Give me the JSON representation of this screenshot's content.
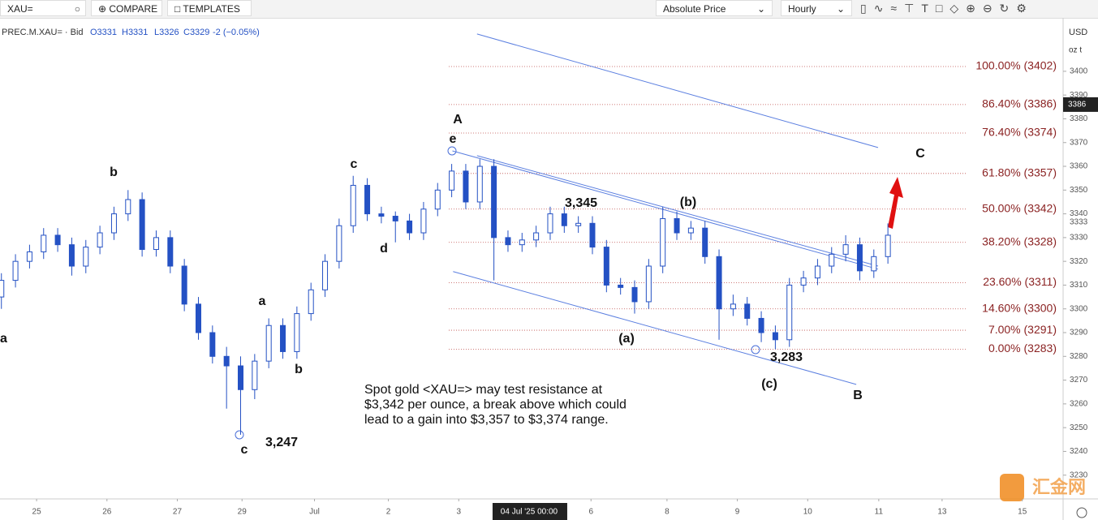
{
  "toolbar": {
    "symbol": "XAU=",
    "compare": "COMPARE",
    "templates": "TEMPLATES",
    "price_mode": "Absolute Price",
    "interval": "Hourly"
  },
  "chart_data": {
    "type": "candlestick",
    "legend": {
      "symbol": "PREC.M.XAU= · Bid",
      "open": "O3331",
      "high": "H3331",
      "low": "L3326",
      "close": "C3329",
      "change": "-2 (−0.05%)"
    },
    "currency": "USD",
    "unit": "oz t",
    "x": [
      -0.5,
      -0.3,
      -0.1,
      0.1,
      0.3,
      0.5,
      0.7,
      0.9,
      1.1,
      1.3,
      1.5,
      1.7,
      1.9,
      2.1,
      2.3,
      2.5,
      2.7,
      2.9,
      3.1,
      3.3,
      3.5,
      3.7,
      3.9,
      4.1,
      4.3,
      4.5,
      4.7,
      4.9,
      5.1,
      5.3,
      5.5,
      5.7,
      5.9,
      6.1,
      6.3,
      6.5,
      6.7,
      6.9,
      7.1,
      7.3,
      7.5,
      7.7,
      7.9,
      8.1,
      8.3,
      8.5,
      8.7,
      8.9,
      9.1,
      9.3,
      9.5,
      9.7,
      9.9,
      10.1,
      10.3,
      10.5,
      10.7,
      10.9,
      11.1,
      11.3,
      11.5,
      11.7,
      11.9,
      12.1
    ],
    "candles": [
      [
        3305,
        3315,
        3300,
        3312
      ],
      [
        3312,
        3323,
        3309,
        3320
      ],
      [
        3320,
        3327,
        3317,
        3324
      ],
      [
        3324,
        3334,
        3321,
        3331
      ],
      [
        3331,
        3334,
        3324,
        3327
      ],
      [
        3327,
        3330,
        3314,
        3318
      ],
      [
        3318,
        3329,
        3315,
        3326
      ],
      [
        3326,
        3335,
        3323,
        3332
      ],
      [
        3332,
        3343,
        3329,
        3340
      ],
      [
        3340,
        3350,
        3337,
        3346
      ],
      [
        3346,
        3349,
        3322,
        3325
      ],
      [
        3325,
        3333,
        3322,
        3330
      ],
      [
        3330,
        3333,
        3315,
        3318
      ],
      [
        3318,
        3321,
        3299,
        3302
      ],
      [
        3302,
        3305,
        3287,
        3290
      ],
      [
        3290,
        3293,
        3277,
        3280
      ],
      [
        3280,
        3284,
        3258,
        3276
      ],
      [
        3276,
        3280,
        3247,
        3266
      ],
      [
        3266,
        3281,
        3262,
        3278
      ],
      [
        3278,
        3296,
        3275,
        3293
      ],
      [
        3293,
        3296,
        3279,
        3282
      ],
      [
        3282,
        3301,
        3279,
        3298
      ],
      [
        3298,
        3311,
        3295,
        3308
      ],
      [
        3308,
        3323,
        3305,
        3320
      ],
      [
        3320,
        3338,
        3317,
        3335
      ],
      [
        3335,
        3356,
        3332,
        3352
      ],
      [
        3352,
        3355,
        3337,
        3340
      ],
      [
        3340,
        3343,
        3336,
        3339
      ],
      [
        3339,
        3341,
        3328,
        3337
      ],
      [
        3337,
        3340,
        3329,
        3332
      ],
      [
        3332,
        3345,
        3329,
        3342
      ],
      [
        3342,
        3353,
        3339,
        3350
      ],
      [
        3350,
        3361,
        3347,
        3358
      ],
      [
        3358,
        3361,
        3342,
        3345
      ],
      [
        3345,
        3363,
        3342,
        3360
      ],
      [
        3360,
        3363,
        3312,
        3330
      ],
      [
        3330,
        3333,
        3324,
        3327
      ],
      [
        3327,
        3332,
        3324,
        3329
      ],
      [
        3329,
        3335,
        3326,
        3332
      ],
      [
        3332,
        3343,
        3329,
        3340
      ],
      [
        3340,
        3343,
        3332,
        3335
      ],
      [
        3335,
        3339,
        3332,
        3336
      ],
      [
        3336,
        3339,
        3323,
        3326
      ],
      [
        3326,
        3329,
        3307,
        3310
      ],
      [
        3310,
        3313,
        3306,
        3309
      ],
      [
        3309,
        3312,
        3298,
        3303
      ],
      [
        3303,
        3321,
        3300,
        3318
      ],
      [
        3318,
        3343,
        3315,
        3338
      ],
      [
        3338,
        3341,
        3329,
        3332
      ],
      [
        3332,
        3337,
        3329,
        3334
      ],
      [
        3334,
        3337,
        3319,
        3322
      ],
      [
        3322,
        3325,
        3287,
        3300
      ],
      [
        3300,
        3306,
        3297,
        3302
      ],
      [
        3302,
        3305,
        3293,
        3296
      ],
      [
        3296,
        3299,
        3286,
        3290
      ],
      [
        3290,
        3293,
        3283,
        3287
      ],
      [
        3287,
        3313,
        3284,
        3310
      ],
      [
        3310,
        3316,
        3307,
        3313
      ],
      [
        3313,
        3321,
        3310,
        3318
      ],
      [
        3318,
        3326,
        3315,
        3323
      ],
      [
        3323,
        3331,
        3320,
        3327
      ],
      [
        3327,
        3330,
        3312,
        3316
      ],
      [
        3316,
        3325,
        3313,
        3322
      ],
      [
        3322,
        3336,
        3319,
        3331
      ]
    ],
    "up_color": "#ffffff",
    "line_color": "#2451c4",
    "xlim": [
      -0.52,
      14.59
    ],
    "xticks": [
      {
        "value": 0,
        "label": "25"
      },
      {
        "value": 1,
        "label": "26"
      },
      {
        "value": 2,
        "label": "27"
      },
      {
        "value": 2.92,
        "label": "29"
      },
      {
        "value": 3.95,
        "label": "Jul"
      },
      {
        "value": 5,
        "label": "2"
      },
      {
        "value": 6,
        "label": "3"
      },
      {
        "value": 7.88,
        "label": "6"
      },
      {
        "value": 8.96,
        "label": "8"
      },
      {
        "value": 9.96,
        "label": "9"
      },
      {
        "value": 10.96,
        "label": "10"
      },
      {
        "value": 11.97,
        "label": "11"
      },
      {
        "value": 12.87,
        "label": "13"
      },
      {
        "value": 14.01,
        "label": "15"
      }
    ],
    "ylim": [
      3220,
      3422.5
    ],
    "yticks": [
      3230,
      3240,
      3250,
      3260,
      3270,
      3280,
      3290,
      3300,
      3310,
      3320,
      3330,
      3340,
      3350,
      3360,
      3370,
      3380,
      3390,
      3400
    ],
    "last_price": 3333,
    "crosshair": {
      "x": 7,
      "x_label": "04 Jul '25  00:00",
      "price": 3386
    },
    "fib_color": "#c0504d",
    "fib_levels": [
      {
        "value": 3402,
        "label": "100.00% (3402)"
      },
      {
        "value": 3386,
        "label": "86.40% (3386)"
      },
      {
        "value": 3374,
        "label": "76.40% (3374)"
      },
      {
        "value": 3357,
        "label": "61.80% (3357)"
      },
      {
        "value": 3342,
        "label": "50.00% (3342)"
      },
      {
        "value": 3328,
        "label": "38.20% (3328)"
      },
      {
        "value": 3311,
        "label": "23.60% (3311)"
      },
      {
        "value": 3300,
        "label": "14.60% (3300)"
      },
      {
        "value": 3291,
        "label": "7.00% (3291)"
      },
      {
        "value": 3283,
        "label": "0.00% (3283)"
      }
    ],
    "trendline_color": "#5b7fe0",
    "trendlines": [
      {
        "x": [
          6.26,
          11.96
        ],
        "y": [
          3415.7,
          3367.9
        ]
      },
      {
        "x": [
          5.91,
          11.96
        ],
        "y": [
          3366.5,
          3316.7
        ]
      },
      {
        "x": [
          6.26,
          11.96
        ],
        "y": [
          3364.5,
          3318
        ]
      },
      {
        "x": [
          5.92,
          11.65
        ],
        "y": [
          3315.7,
          3268.2
        ]
      }
    ],
    "wave_labels": [
      "a",
      "b",
      "c",
      "d",
      "a",
      "b",
      "c",
      "3,247",
      "A",
      "e",
      "3,345",
      "(b)",
      "(a)",
      "3,283",
      "(c)",
      "B",
      "C"
    ],
    "note": [
      "Spot gold <XAU=> may test resistance at",
      "$3,342 per ounce, a break above which could",
      "lead to a gain into $3,357 to $3,374 range."
    ],
    "watermark": "汇金网"
  }
}
